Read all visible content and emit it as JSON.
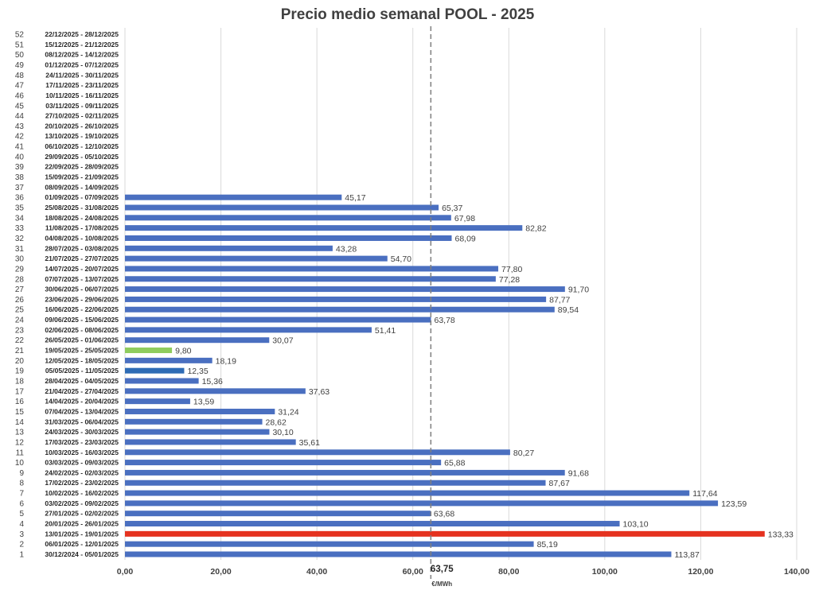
{
  "chart_data": {
    "type": "bar",
    "orientation": "horizontal",
    "title": "Precio medio semanal POOL - 2025",
    "xlabel": "€/MWh",
    "ylabel": "",
    "xlim": [
      0,
      140
    ],
    "xticks": [
      "0,00",
      "20,00",
      "40,00",
      "60,00",
      "80,00",
      "100,00",
      "120,00",
      "140,00"
    ],
    "grid": true,
    "average": {
      "value": 63.75,
      "label": "63,75"
    },
    "colors": {
      "default": "#4a6fc0",
      "max": "#e5321f",
      "min": "#8fcc5e",
      "highlight": "#2e6bb5",
      "average_line": "#7f7f7f"
    },
    "categories": [
      {
        "week": "1",
        "range": "30/12/2024 - 05/01/2025",
        "value": 113.87,
        "label": "113,87",
        "color": "default"
      },
      {
        "week": "2",
        "range": "06/01/2025 - 12/01/2025",
        "value": 85.19,
        "label": "85,19",
        "color": "default"
      },
      {
        "week": "3",
        "range": "13/01/2025 - 19/01/2025",
        "value": 133.33,
        "label": "133,33",
        "color": "max"
      },
      {
        "week": "4",
        "range": "20/01/2025 - 26/01/2025",
        "value": 103.1,
        "label": "103,10",
        "color": "default"
      },
      {
        "week": "5",
        "range": "27/01/2025 - 02/02/2025",
        "value": 63.68,
        "label": "63,68",
        "color": "default"
      },
      {
        "week": "6",
        "range": "03/02/2025 - 09/02/2025",
        "value": 123.59,
        "label": "123,59",
        "color": "default"
      },
      {
        "week": "7",
        "range": "10/02/2025 - 16/02/2025",
        "value": 117.64,
        "label": "117,64",
        "color": "default"
      },
      {
        "week": "8",
        "range": "17/02/2025 - 23/02/2025",
        "value": 87.67,
        "label": "87,67",
        "color": "default"
      },
      {
        "week": "9",
        "range": "24/02/2025 - 02/03/2025",
        "value": 91.68,
        "label": "91,68",
        "color": "default"
      },
      {
        "week": "10",
        "range": "03/03/2025 - 09/03/2025",
        "value": 65.88,
        "label": "65,88",
        "color": "default"
      },
      {
        "week": "11",
        "range": "10/03/2025 - 16/03/2025",
        "value": 80.27,
        "label": "80,27",
        "color": "default"
      },
      {
        "week": "12",
        "range": "17/03/2025 - 23/03/2025",
        "value": 35.61,
        "label": "35,61",
        "color": "default"
      },
      {
        "week": "13",
        "range": "24/03/2025 - 30/03/2025",
        "value": 30.1,
        "label": "30,10",
        "color": "default"
      },
      {
        "week": "14",
        "range": "31/03/2025 - 06/04/2025",
        "value": 28.62,
        "label": "28,62",
        "color": "default"
      },
      {
        "week": "15",
        "range": "07/04/2025 - 13/04/2025",
        "value": 31.24,
        "label": "31,24",
        "color": "default"
      },
      {
        "week": "16",
        "range": "14/04/2025 - 20/04/2025",
        "value": 13.59,
        "label": "13,59",
        "color": "default"
      },
      {
        "week": "17",
        "range": "21/04/2025 - 27/04/2025",
        "value": 37.63,
        "label": "37,63",
        "color": "default"
      },
      {
        "week": "18",
        "range": "28/04/2025 - 04/05/2025",
        "value": 15.36,
        "label": "15,36",
        "color": "default"
      },
      {
        "week": "19",
        "range": "05/05/2025 - 11/05/2025",
        "value": 12.35,
        "label": "12,35",
        "color": "highlight"
      },
      {
        "week": "20",
        "range": "12/05/2025 - 18/05/2025",
        "value": 18.19,
        "label": "18,19",
        "color": "default"
      },
      {
        "week": "21",
        "range": "19/05/2025 - 25/05/2025",
        "value": 9.8,
        "label": "9,80",
        "color": "min"
      },
      {
        "week": "22",
        "range": "26/05/2025 - 01/06/2025",
        "value": 30.07,
        "label": "30,07",
        "color": "default"
      },
      {
        "week": "23",
        "range": "02/06/2025 - 08/06/2025",
        "value": 51.41,
        "label": "51,41",
        "color": "default"
      },
      {
        "week": "24",
        "range": "09/06/2025 - 15/06/2025",
        "value": 63.78,
        "label": "63,78",
        "color": "default"
      },
      {
        "week": "25",
        "range": "16/06/2025 - 22/06/2025",
        "value": 89.54,
        "label": "89,54",
        "color": "default"
      },
      {
        "week": "26",
        "range": "23/06/2025 - 29/06/2025",
        "value": 87.77,
        "label": "87,77",
        "color": "default"
      },
      {
        "week": "27",
        "range": "30/06/2025 - 06/07/2025",
        "value": 91.7,
        "label": "91,70",
        "color": "default"
      },
      {
        "week": "28",
        "range": "07/07/2025 - 13/07/2025",
        "value": 77.28,
        "label": "77,28",
        "color": "default"
      },
      {
        "week": "29",
        "range": "14/07/2025 - 20/07/2025",
        "value": 77.8,
        "label": "77,80",
        "color": "default"
      },
      {
        "week": "30",
        "range": "21/07/2025 - 27/07/2025",
        "value": 54.7,
        "label": "54,70",
        "color": "default"
      },
      {
        "week": "31",
        "range": "28/07/2025 - 03/08/2025",
        "value": 43.28,
        "label": "43,28",
        "color": "default"
      },
      {
        "week": "32",
        "range": "04/08/2025 - 10/08/2025",
        "value": 68.09,
        "label": "68,09",
        "color": "default"
      },
      {
        "week": "33",
        "range": "11/08/2025 - 17/08/2025",
        "value": 82.82,
        "label": "82,82",
        "color": "default"
      },
      {
        "week": "34",
        "range": "18/08/2025 - 24/08/2025",
        "value": 67.98,
        "label": "67,98",
        "color": "default"
      },
      {
        "week": "35",
        "range": "25/08/2025 - 31/08/2025",
        "value": 65.37,
        "label": "65,37",
        "color": "default"
      },
      {
        "week": "36",
        "range": "01/09/2025 - 07/09/2025",
        "value": 45.17,
        "label": "45,17",
        "color": "default"
      },
      {
        "week": "37",
        "range": "08/09/2025 - 14/09/2025",
        "value": null,
        "label": "",
        "color": "default"
      },
      {
        "week": "38",
        "range": "15/09/2025 - 21/09/2025",
        "value": null,
        "label": "",
        "color": "default"
      },
      {
        "week": "39",
        "range": "22/09/2025 - 28/09/2025",
        "value": null,
        "label": "",
        "color": "default"
      },
      {
        "week": "40",
        "range": "29/09/2025 - 05/10/2025",
        "value": null,
        "label": "",
        "color": "default"
      },
      {
        "week": "41",
        "range": "06/10/2025 - 12/10/2025",
        "value": null,
        "label": "",
        "color": "default"
      },
      {
        "week": "42",
        "range": "13/10/2025 - 19/10/2025",
        "value": null,
        "label": "",
        "color": "default"
      },
      {
        "week": "43",
        "range": "20/10/2025 - 26/10/2025",
        "value": null,
        "label": "",
        "color": "default"
      },
      {
        "week": "44",
        "range": "27/10/2025 - 02/11/2025",
        "value": null,
        "label": "",
        "color": "default"
      },
      {
        "week": "45",
        "range": "03/11/2025 - 09/11/2025",
        "value": null,
        "label": "",
        "color": "default"
      },
      {
        "week": "46",
        "range": "10/11/2025 - 16/11/2025",
        "value": null,
        "label": "",
        "color": "default"
      },
      {
        "week": "47",
        "range": "17/11/2025 - 23/11/2025",
        "value": null,
        "label": "",
        "color": "default"
      },
      {
        "week": "48",
        "range": "24/11/2025 - 30/11/2025",
        "value": null,
        "label": "",
        "color": "default"
      },
      {
        "week": "49",
        "range": "01/12/2025 - 07/12/2025",
        "value": null,
        "label": "",
        "color": "default"
      },
      {
        "week": "50",
        "range": "08/12/2025 - 14/12/2025",
        "value": null,
        "label": "",
        "color": "default"
      },
      {
        "week": "51",
        "range": "15/12/2025 - 21/12/2025",
        "value": null,
        "label": "",
        "color": "default"
      },
      {
        "week": "52",
        "range": "22/12/2025 - 28/12/2025",
        "value": null,
        "label": "",
        "color": "default"
      }
    ]
  }
}
